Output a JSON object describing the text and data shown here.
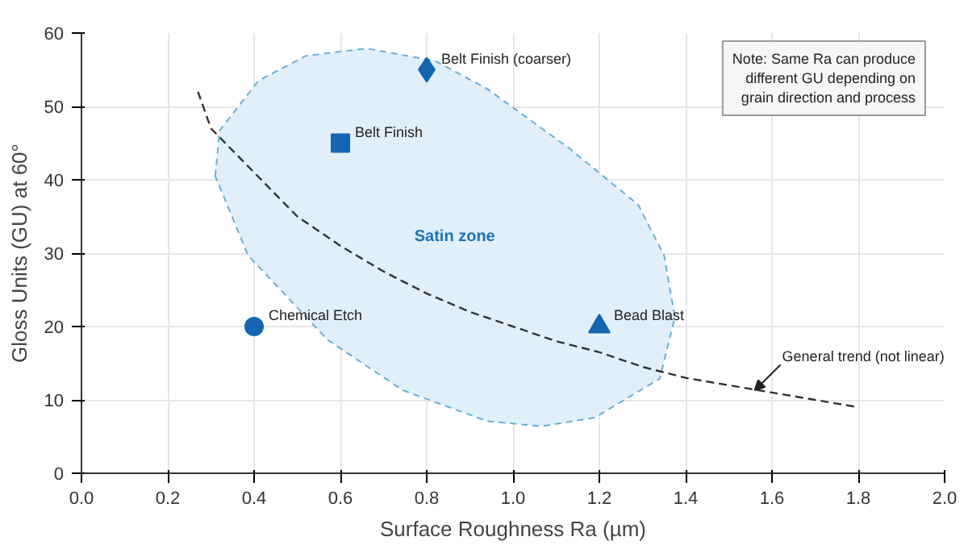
{
  "chart_data": {
    "type": "scatter",
    "xlabel": "Surface Roughness Ra (µm)",
    "ylabel": "Gloss Units (GU) at 60°",
    "xlim": [
      0,
      2.0
    ],
    "xticks": [
      {
        "value": 0,
        "label": "0.0"
      },
      {
        "value": 0.2,
        "label": "0.2"
      },
      {
        "value": 0.4,
        "label": "0.4"
      },
      {
        "value": 0.6,
        "label": "0.6"
      },
      {
        "value": 0.8,
        "label": "0.8"
      },
      {
        "value": 1.0,
        "label": "1.0"
      },
      {
        "value": 1.2,
        "label": "1.2"
      },
      {
        "value": 1.4,
        "label": "1.4"
      },
      {
        "value": 1.6,
        "label": "1.6"
      },
      {
        "value": 1.8,
        "label": "1.8"
      },
      {
        "value": 2.0,
        "label": "2.0"
      }
    ],
    "ylim": [
      0,
      60
    ],
    "yticks": [
      0,
      10,
      20,
      30,
      40,
      50,
      60
    ],
    "grid": true,
    "series": [
      {
        "type": "area",
        "color": "#deedf9",
        "x": [
          0.31,
          0.32,
          0.41,
          0.52,
          0.66,
          0.82,
          0.94,
          1.13,
          1.29,
          1.35,
          1.375,
          1.34,
          1.19,
          1.065,
          0.94,
          0.745,
          0.57,
          0.386,
          0.31
        ],
        "values": [
          40.5,
          46.7,
          53.5,
          56.9,
          57.9,
          56.2,
          52.4,
          44.3,
          36.6,
          29.7,
          21.3,
          12.9,
          7.6,
          6.4,
          7.1,
          11.3,
          18.2,
          29.7,
          40.5
        ]
      },
      {
        "type": "line",
        "color": "#333333",
        "line_style": "dashed",
        "x": [
          0.27,
          0.3,
          0.4,
          0.5,
          0.6,
          0.7,
          0.8,
          0.9,
          1.0,
          1.1,
          1.2,
          1.3,
          1.4,
          1.5,
          1.6,
          1.7,
          1.8
        ],
        "values": [
          52,
          47,
          41,
          35,
          31,
          27.5,
          24.5,
          22,
          20,
          18,
          16.5,
          14.5,
          13,
          12,
          11,
          10,
          9
        ]
      },
      {
        "name": "Chemical Etch",
        "color": "#1565b0",
        "marker": "circle",
        "x": [
          0.4
        ],
        "values": [
          20
        ]
      },
      {
        "name": "Belt Finish",
        "color": "#1565b0",
        "marker": "square",
        "x": [
          0.6
        ],
        "values": [
          45
        ]
      },
      {
        "name": "Belt Finish (coarser)",
        "color": "#1565b0",
        "marker": "diamond",
        "x": [
          0.8
        ],
        "values": [
          55
        ]
      },
      {
        "name": "Bead Blast",
        "color": "#1565b0",
        "marker": "triangle",
        "x": [
          1.2
        ],
        "values": [
          20
        ]
      }
    ],
    "annotations": [
      "Satin zone",
      {
        "text": "General trend (not linear)",
        "x": 1.56,
        "y": 11.3
      },
      "Note: Same Ra can produce\ndifferent GU depending on\ngrain direction and process"
    ]
  }
}
